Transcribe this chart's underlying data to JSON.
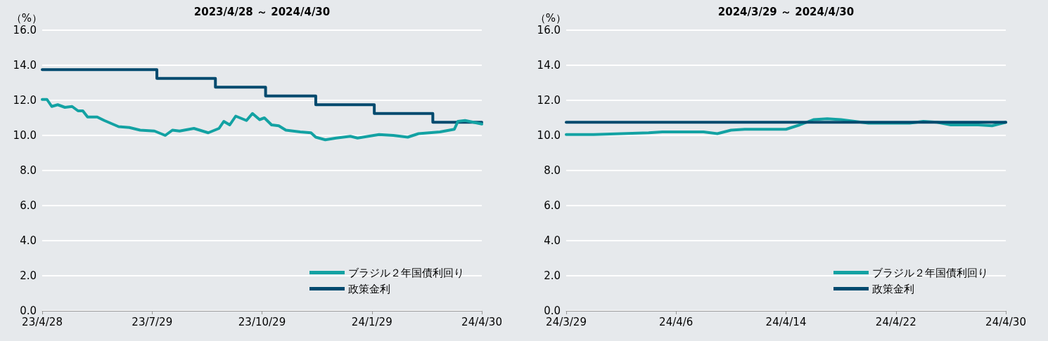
{
  "chart_data": [
    {
      "type": "line",
      "title": "2023/4/28 ～ 2024/4/30",
      "ylabel": "（%）",
      "ylim": [
        0,
        16
      ],
      "yticks": [
        {
          "value": 0,
          "label": "0.0"
        },
        {
          "value": 2,
          "label": "2.0"
        },
        {
          "value": 4,
          "label": "4.0"
        },
        {
          "value": 6,
          "label": "6.0"
        },
        {
          "value": 8,
          "label": "8.0"
        },
        {
          "value": 10,
          "label": "10.0"
        },
        {
          "value": 12,
          "label": "12.0"
        },
        {
          "value": 14,
          "label": "14.0"
        },
        {
          "value": 16,
          "label": "16.0"
        }
      ],
      "xlim": [
        "2023-04-28",
        "2024-04-30"
      ],
      "xticks": [
        {
          "value": "2023-04-28",
          "label": "23/4/28"
        },
        {
          "value": "2023-07-29",
          "label": "23/7/29"
        },
        {
          "value": "2023-10-29",
          "label": "23/10/29"
        },
        {
          "value": "2024-01-29",
          "label": "24/1/29"
        },
        {
          "value": "2024-04-30",
          "label": "24/4/30"
        }
      ],
      "grid": "y",
      "legend": "bottom right",
      "marker": "none",
      "line_style": "solid",
      "series": [
        {
          "name": "ブラジル２年国債利回り",
          "color": "#13a2a3",
          "x": [
            "2023-04-28",
            "2023-05-02",
            "2023-05-06",
            "2023-05-11",
            "2023-05-17",
            "2023-05-23",
            "2023-05-28",
            "2023-06-01",
            "2023-06-05",
            "2023-06-13",
            "2023-06-19",
            "2023-07-01",
            "2023-07-10",
            "2023-07-19",
            "2023-07-31",
            "2023-08-09",
            "2023-08-15",
            "2023-08-21",
            "2023-09-02",
            "2023-09-14",
            "2023-09-23",
            "2023-09-27",
            "2023-10-02",
            "2023-10-07",
            "2023-10-16",
            "2023-10-21",
            "2023-10-27",
            "2023-10-31",
            "2023-11-06",
            "2023-11-12",
            "2023-11-18",
            "2023-11-30",
            "2023-12-09",
            "2023-12-13",
            "2023-12-21",
            "2023-12-30",
            "2024-01-11",
            "2024-01-17",
            "2024-01-26",
            "2024-02-04",
            "2024-02-16",
            "2024-02-28",
            "2024-03-08",
            "2024-03-17",
            "2024-03-26",
            "2024-04-07",
            "2024-04-10",
            "2024-04-16",
            "2024-04-23",
            "2024-04-30"
          ],
          "values": [
            12.05,
            12.05,
            11.65,
            11.75,
            11.6,
            11.65,
            11.4,
            11.4,
            11.05,
            11.05,
            10.85,
            10.5,
            10.45,
            10.3,
            10.25,
            10.0,
            10.3,
            10.25,
            10.4,
            10.15,
            10.4,
            10.8,
            10.6,
            11.1,
            10.85,
            11.25,
            10.9,
            11.0,
            10.6,
            10.55,
            10.3,
            10.2,
            10.15,
            9.9,
            9.75,
            9.85,
            9.95,
            9.85,
            9.95,
            10.05,
            10.0,
            9.9,
            10.1,
            10.15,
            10.2,
            10.35,
            10.8,
            10.85,
            10.75,
            10.65
          ]
        },
        {
          "name": "政策金利",
          "color": "#004a6e",
          "type": "step",
          "x": [
            "2023-04-28",
            "2023-08-02",
            "2023-09-20",
            "2023-11-01",
            "2023-12-13",
            "2024-01-31",
            "2024-03-20",
            "2024-04-30"
          ],
          "values": [
            13.75,
            13.25,
            12.75,
            12.25,
            11.75,
            11.25,
            10.75,
            10.75
          ]
        }
      ]
    },
    {
      "type": "line",
      "title": "2024/3/29 ～ 2024/4/30",
      "ylabel": "（%）",
      "ylim": [
        0,
        16
      ],
      "yticks": [
        {
          "value": 0,
          "label": "0.0"
        },
        {
          "value": 2,
          "label": "2.0"
        },
        {
          "value": 4,
          "label": "4.0"
        },
        {
          "value": 6,
          "label": "6.0"
        },
        {
          "value": 8,
          "label": "8.0"
        },
        {
          "value": 10,
          "label": "10.0"
        },
        {
          "value": 12,
          "label": "12.0"
        },
        {
          "value": 14,
          "label": "14.0"
        },
        {
          "value": 16,
          "label": "16.0"
        }
      ],
      "xlim": [
        "2024-03-29",
        "2024-04-30"
      ],
      "xticks": [
        {
          "value": "2024-03-29",
          "label": "24/3/29"
        },
        {
          "value": "2024-04-06",
          "label": "24/4/6"
        },
        {
          "value": "2024-04-14",
          "label": "24/4/14"
        },
        {
          "value": "2024-04-22",
          "label": "24/4/22"
        },
        {
          "value": "2024-04-30",
          "label": "24/4/30"
        }
      ],
      "grid": "y",
      "legend": "bottom right",
      "marker": "none",
      "line_style": "solid",
      "series": [
        {
          "name": "ブラジル２年国債利回り",
          "color": "#13a2a3",
          "x": [
            "2024-03-29",
            "2024-03-31",
            "2024-04-02",
            "2024-04-04",
            "2024-04-05",
            "2024-04-08",
            "2024-04-09",
            "2024-04-10",
            "2024-04-11",
            "2024-04-14",
            "2024-04-15",
            "2024-04-16",
            "2024-04-17",
            "2024-04-18",
            "2024-04-20",
            "2024-04-23",
            "2024-04-24",
            "2024-04-25",
            "2024-04-26",
            "2024-04-28",
            "2024-04-29",
            "2024-04-30"
          ],
          "values": [
            10.05,
            10.05,
            10.1,
            10.15,
            10.2,
            10.2,
            10.1,
            10.3,
            10.35,
            10.35,
            10.6,
            10.9,
            10.95,
            10.9,
            10.7,
            10.7,
            10.8,
            10.75,
            10.6,
            10.6,
            10.55,
            10.75
          ]
        },
        {
          "name": "政策金利",
          "color": "#004a6e",
          "x": [
            "2024-03-29",
            "2024-04-30"
          ],
          "values": [
            10.75,
            10.75
          ]
        }
      ]
    }
  ]
}
